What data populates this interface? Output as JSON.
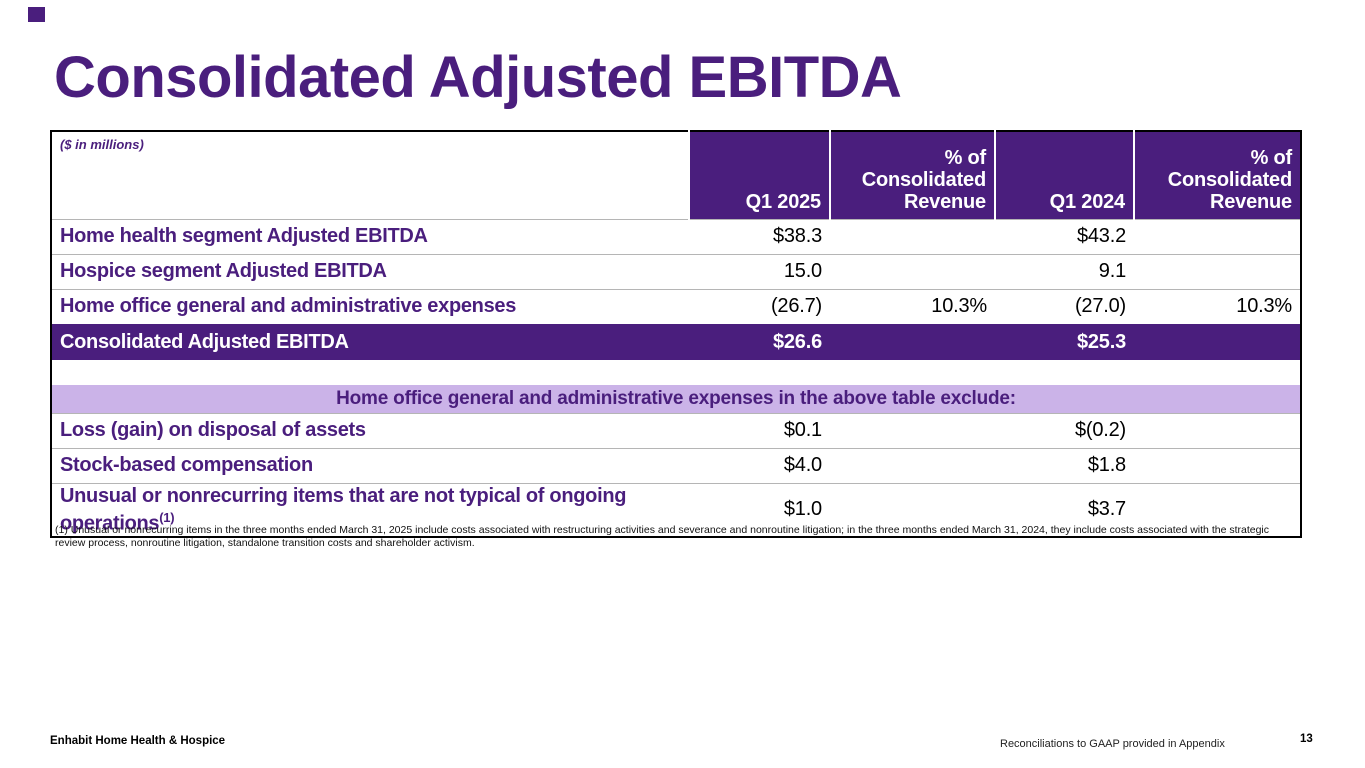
{
  "slide": {
    "title": "Consolidated Adjusted EBITDA",
    "colors": {
      "brand_purple": "#4A1E7D",
      "band_lavender": "#CBB3E8"
    },
    "table": {
      "units_note": "($ in millions)",
      "columns": [
        {
          "lines": [
            "Q1 2025"
          ]
        },
        {
          "lines": [
            "% of",
            "Consolidated",
            "Revenue"
          ]
        },
        {
          "lines": [
            "Q1 2024"
          ]
        },
        {
          "lines": [
            "% of",
            "Consolidated",
            "Revenue"
          ]
        }
      ],
      "rows": [
        {
          "label": "Home health segment Adjusted EBITDA",
          "v1": "$38.3",
          "v2": "",
          "v3": "$43.2",
          "v4": ""
        },
        {
          "label": "Hospice segment Adjusted EBITDA",
          "v1": "15.0",
          "v2": "",
          "v3": "9.1",
          "v4": ""
        },
        {
          "label": "Home office general and administrative expenses",
          "v1": "(26.7)",
          "v2": "10.3%",
          "v3": "(27.0)",
          "v4": "10.3%"
        },
        {
          "label": "Consolidated Adjusted EBITDA",
          "v1": "$26.6",
          "v2": "",
          "v3": "$25.3",
          "v4": ""
        }
      ],
      "band_text": "Home office general and administrative expenses in the above table exclude:",
      "exclude_rows": [
        {
          "label": "Loss (gain) on disposal of assets",
          "v1": "$0.1",
          "v2": "",
          "v3": "$(0.2)",
          "v4": ""
        },
        {
          "label": "Stock-based compensation",
          "v1": "$4.0",
          "v2": "",
          "v3": "$1.8",
          "v4": ""
        },
        {
          "label": "Unusual or nonrecurring items that are not typical of ongoing operations",
          "label_sup": "(1)",
          "v1": "$1.0",
          "v2": "",
          "v3": "$3.7",
          "v4": ""
        }
      ]
    },
    "footnote": "(1) Unusual or nonrecurring items in the three months ended March 31, 2025 include costs associated with restructuring activities and severance and nonroutine litigation; in the three months ended March 31, 2024, they include costs associated with the strategic review process, nonroutine litigation, standalone transition costs and shareholder activism.",
    "footer": {
      "company": "Enhabit Home Health & Hospice",
      "note": "Reconciliations to GAAP provided in Appendix",
      "page": "13"
    }
  }
}
